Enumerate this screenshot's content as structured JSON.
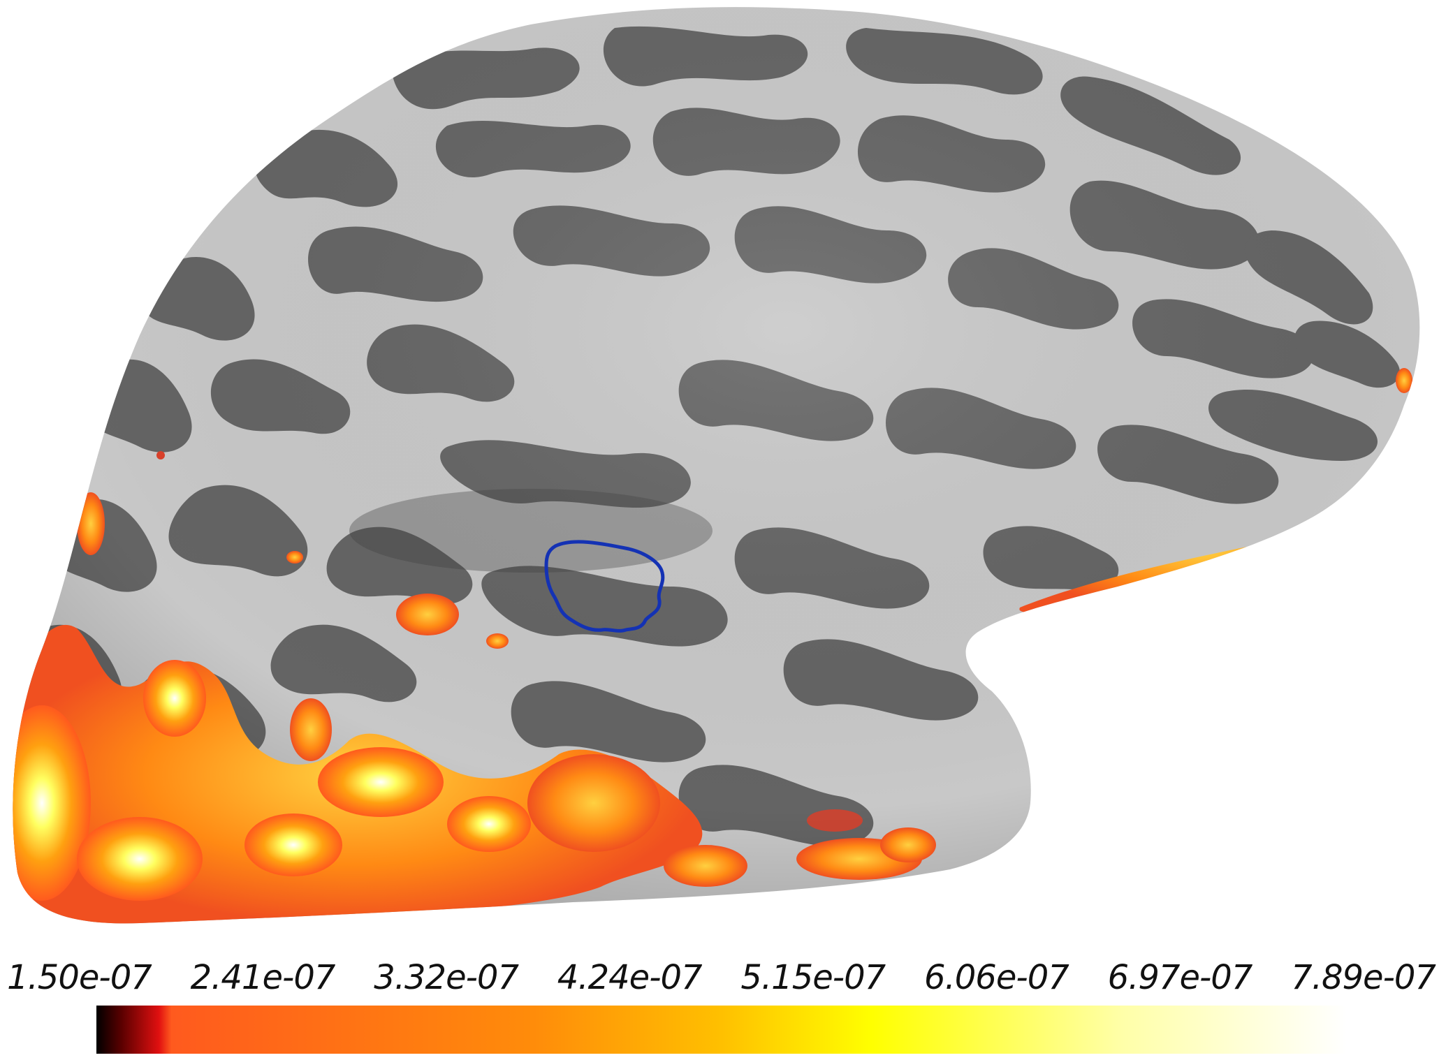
{
  "figure": {
    "colors": {
      "gyri": "#c9c9c9",
      "sulci": "#646464",
      "roi_outline": "#1432b4",
      "background": "#ffffff"
    },
    "roi_label": "roi-outline"
  },
  "colorbar": {
    "ticks": [
      "1.50e-07",
      "2.41e-07",
      "3.32e-07",
      "4.24e-07",
      "5.15e-07",
      "6.06e-07",
      "6.97e-07",
      "7.89e-07"
    ],
    "colormap": [
      "#000000",
      "#5a0000",
      "#e01010",
      "#ff5a1e",
      "#ff8c0a",
      "#ffc000",
      "#ffff00",
      "#ffffa8",
      "#ffffff"
    ]
  }
}
